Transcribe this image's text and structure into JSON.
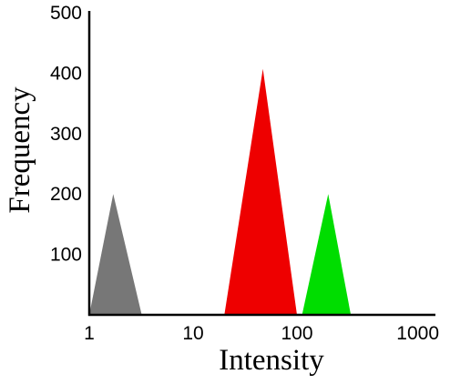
{
  "chart_data": {
    "type": "area",
    "xlabel": "Intensity",
    "ylabel": "Frequency",
    "x_scale": "log",
    "xlim": [
      1,
      1000
    ],
    "ylim": [
      0,
      500
    ],
    "x_ticks": [
      1,
      10,
      100,
      1000
    ],
    "x_tick_labels": [
      "1",
      "10",
      "100",
      "1000"
    ],
    "y_ticks": [
      100,
      200,
      300,
      400,
      500
    ],
    "y_tick_labels": [
      "100",
      "200",
      "300",
      "400",
      "500"
    ],
    "grid": false,
    "series": [
      {
        "color": "#777777",
        "shape": "triangle",
        "x": [
          1,
          1.7,
          3.2
        ],
        "y": [
          0,
          200,
          0
        ]
      },
      {
        "color": "#ee0000",
        "shape": "triangle",
        "x": [
          20,
          47,
          100
        ],
        "y": [
          0,
          407,
          0
        ]
      },
      {
        "color": "#00dd00",
        "shape": "triangle",
        "x": [
          112,
          200,
          330
        ],
        "y": [
          0,
          200,
          0
        ]
      }
    ]
  }
}
